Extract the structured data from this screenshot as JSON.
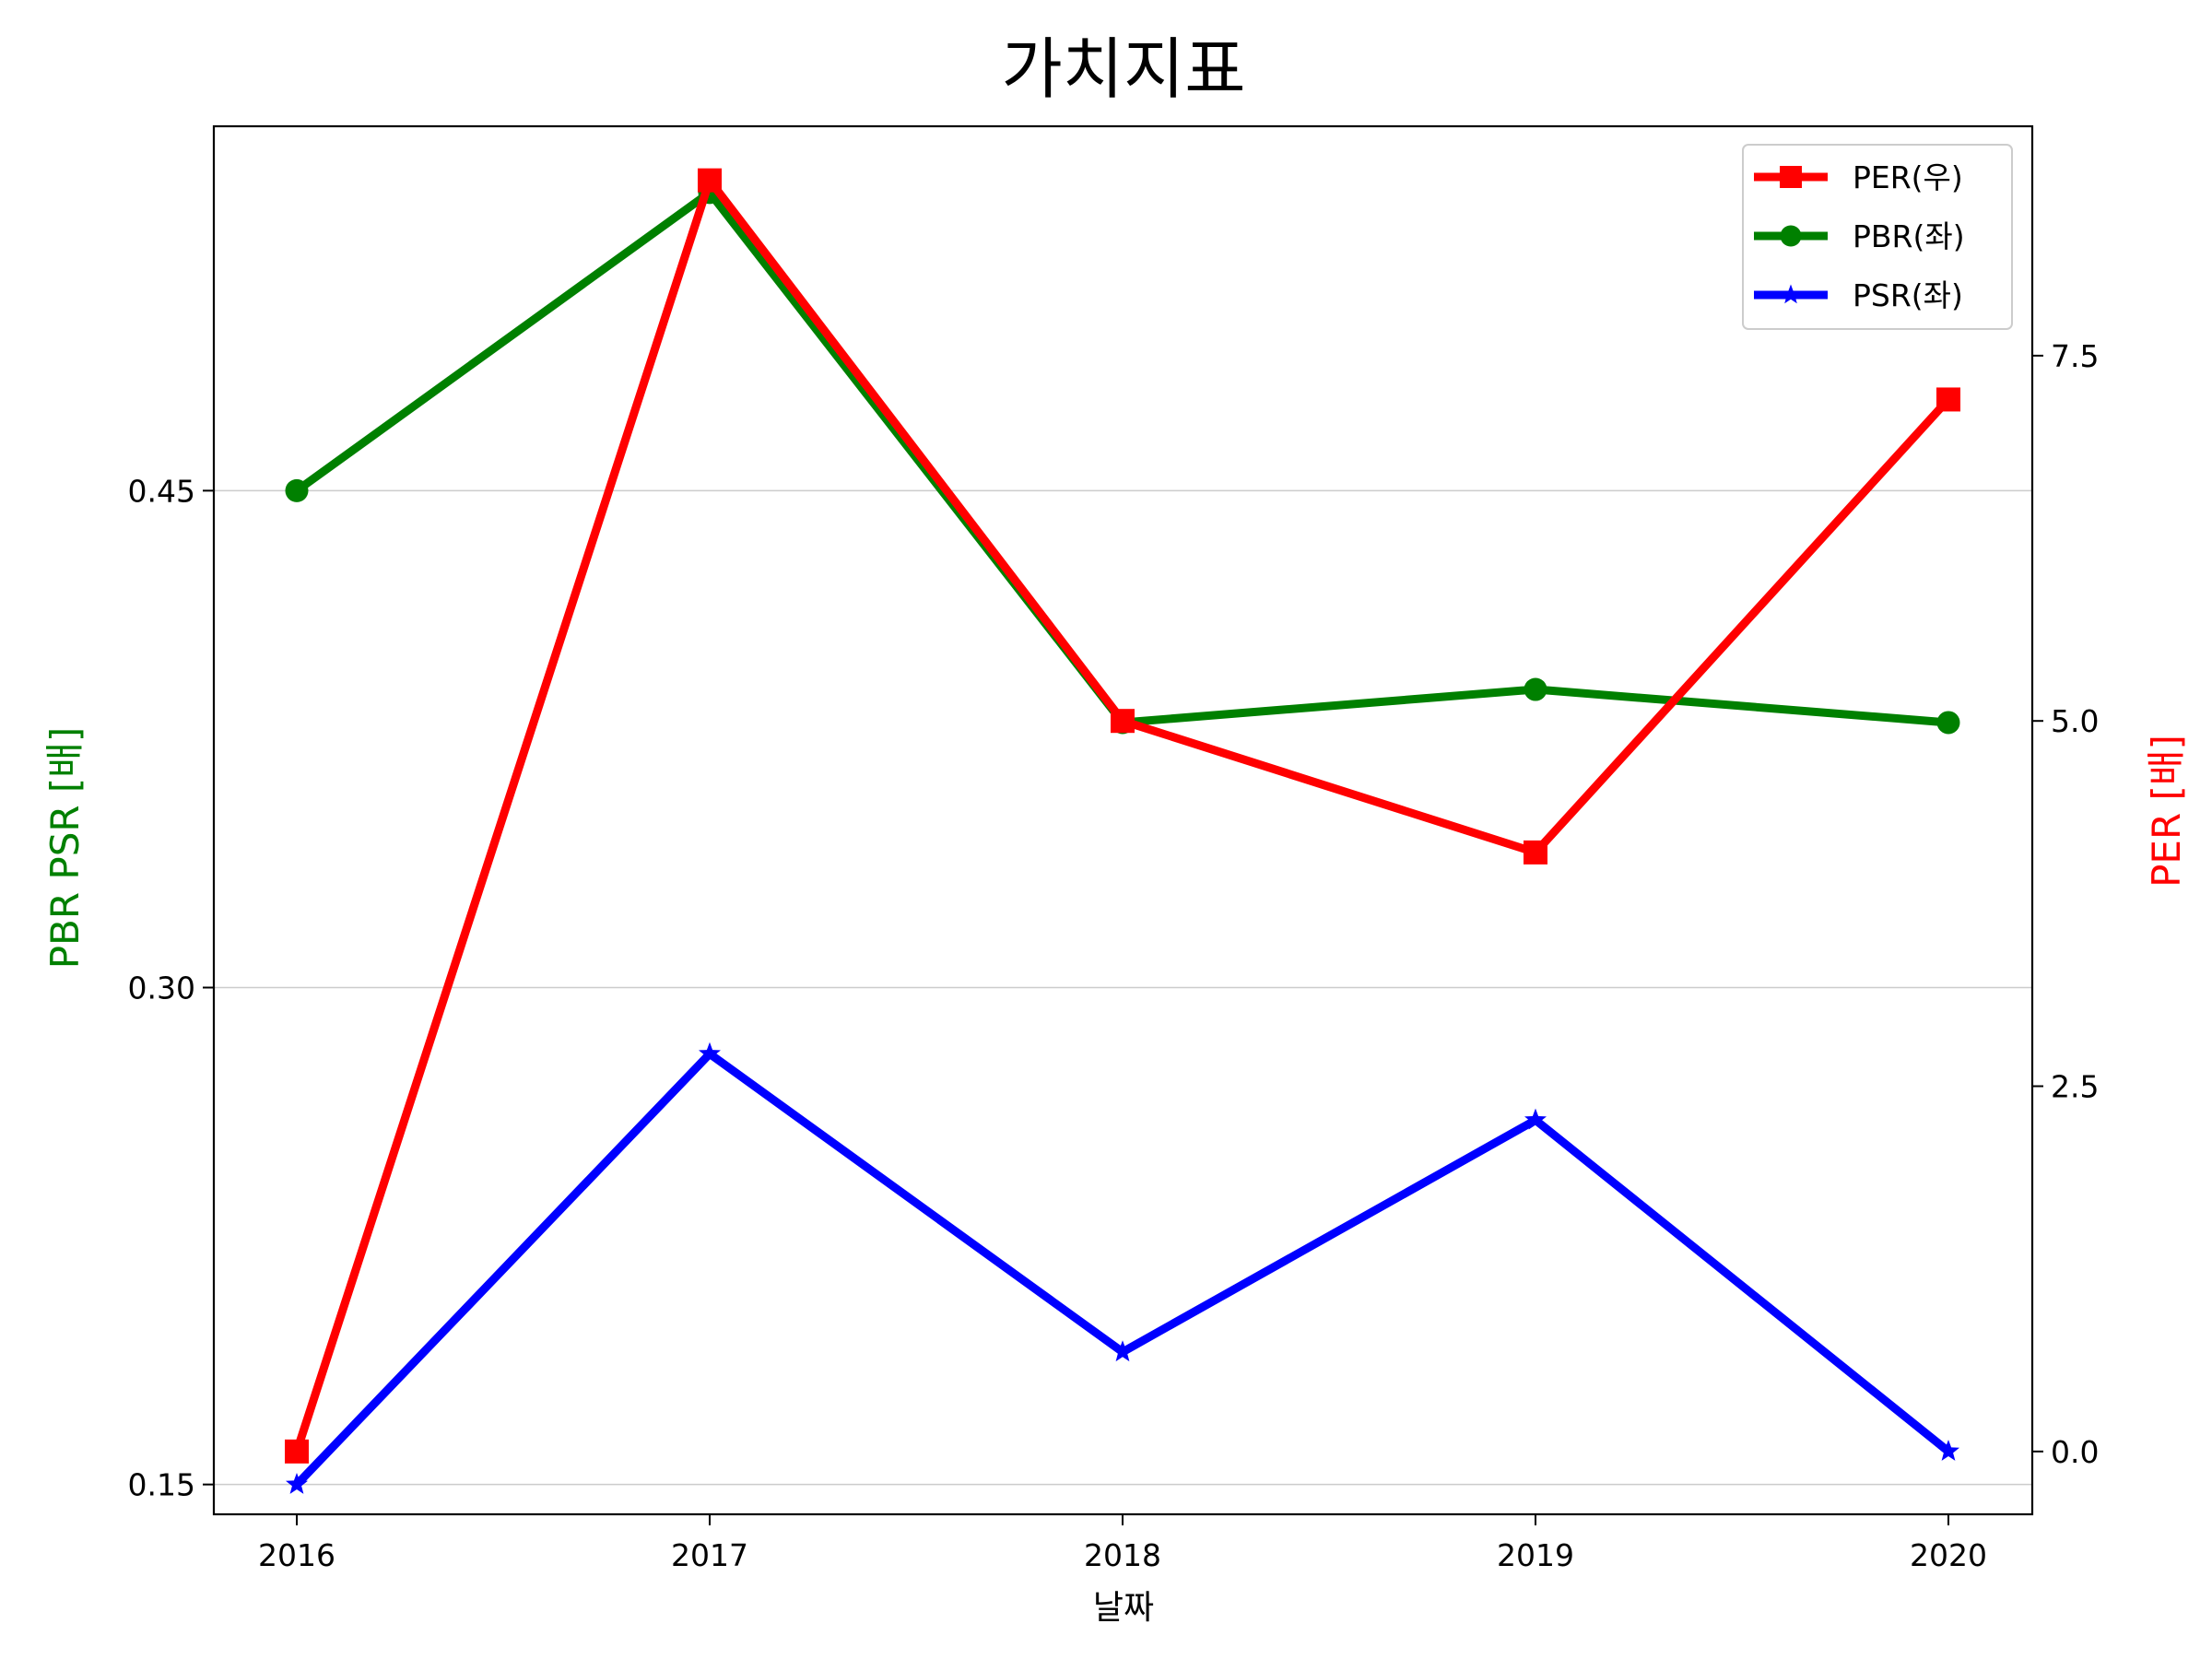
{
  "chart_data": {
    "type": "line",
    "title": "가치지표",
    "xlabel": "날짜",
    "ylabel_left": "PBR PSR [배]",
    "ylabel_right": "PER [배]",
    "x": [
      "2016",
      "2017",
      "2018",
      "2019",
      "2020"
    ],
    "ylim_left": [
      0.141,
      0.56
    ],
    "yticks_left": [
      "0.15",
      "0.30",
      "0.45"
    ],
    "ylim_right": [
      -0.43,
      9.07
    ],
    "yticks_right": [
      "0.0",
      "2.5",
      "5.0",
      "7.5"
    ],
    "grid": "horizontal (left axis)",
    "legend_position": "top-right",
    "series": [
      {
        "name": "PER(우)",
        "axis": "right",
        "color": "#ff0000",
        "marker": "square",
        "values": [
          0.0,
          8.7,
          5.0,
          4.1,
          7.2
        ]
      },
      {
        "name": "PBR(좌)",
        "axis": "left",
        "color": "#008000",
        "marker": "circle",
        "values": [
          0.45,
          0.54,
          0.38,
          0.39,
          0.38
        ]
      },
      {
        "name": "PSR(좌)",
        "axis": "left",
        "color": "#0000ff",
        "marker": "star",
        "values": [
          0.15,
          0.28,
          0.19,
          0.26,
          0.16
        ]
      }
    ]
  }
}
